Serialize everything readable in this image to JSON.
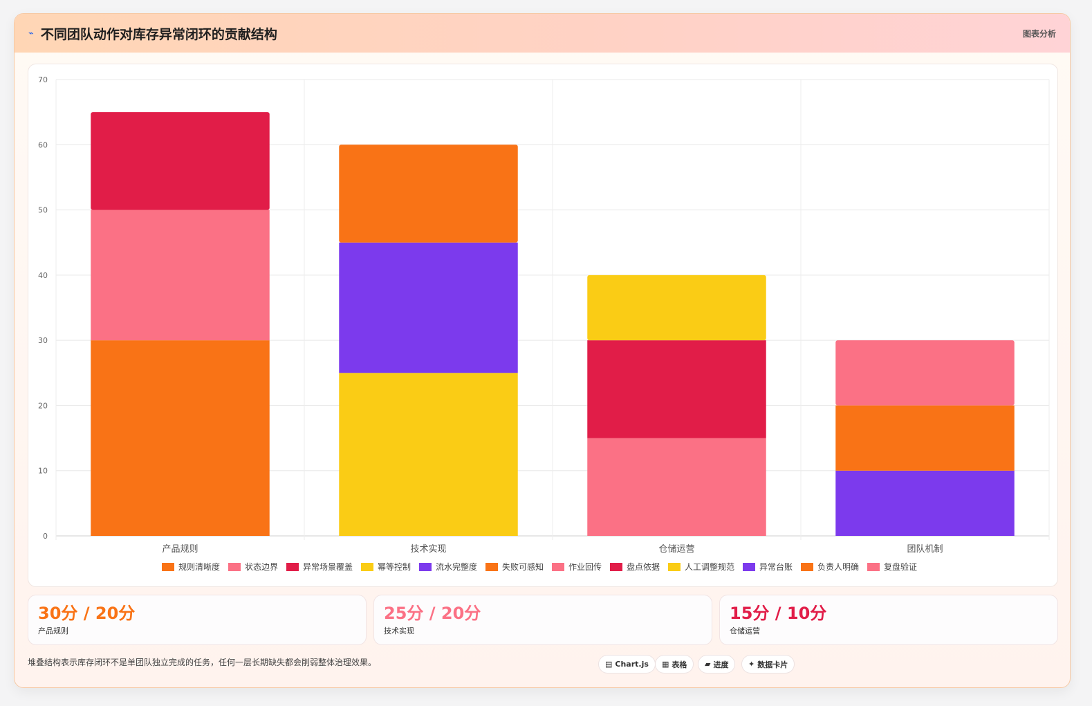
{
  "header": {
    "icon": "chart-trend-icon",
    "title": "不同团队动作对库存异常闭环的贡献结构",
    "link": "图表分析"
  },
  "chart_data": {
    "type": "bar",
    "stacked": true,
    "categories": [
      "产品规则",
      "技术实现",
      "仓储运营",
      "团队机制"
    ],
    "ylim": [
      0,
      70
    ],
    "yticks": [
      0,
      10,
      20,
      30,
      40,
      50,
      60,
      70
    ],
    "grid": true,
    "legend_position": "bottom",
    "series": [
      {
        "name": "规则清晰度",
        "color": "#f97316",
        "values": [
          30,
          0,
          0,
          0
        ]
      },
      {
        "name": "状态边界",
        "color": "#fb7185",
        "values": [
          20,
          0,
          0,
          0
        ]
      },
      {
        "name": "异常场景覆盖",
        "color": "#e11d48",
        "values": [
          15,
          0,
          0,
          0
        ]
      },
      {
        "name": "幂等控制",
        "color": "#facc15",
        "values": [
          0,
          25,
          0,
          0
        ]
      },
      {
        "name": "流水完整度",
        "color": "#7c3aed",
        "values": [
          0,
          20,
          0,
          0
        ]
      },
      {
        "name": "失败可感知",
        "color": "#f97316",
        "values": [
          0,
          15,
          0,
          0
        ]
      },
      {
        "name": "作业回传",
        "color": "#fb7185",
        "values": [
          0,
          0,
          15,
          0
        ]
      },
      {
        "name": "盘点依据",
        "color": "#e11d48",
        "values": [
          0,
          0,
          15,
          0
        ]
      },
      {
        "name": "人工调整规范",
        "color": "#facc15",
        "values": [
          0,
          0,
          10,
          0
        ]
      },
      {
        "name": "异常台账",
        "color": "#7c3aed",
        "values": [
          0,
          0,
          0,
          10
        ]
      },
      {
        "name": "负责人明确",
        "color": "#f97316",
        "values": [
          0,
          0,
          0,
          10
        ]
      },
      {
        "name": "复盘验证",
        "color": "#fb7185",
        "values": [
          0,
          0,
          0,
          10
        ]
      }
    ]
  },
  "stats": [
    {
      "value": "30分 / 20分",
      "label": "产品规则",
      "color": "#f97316"
    },
    {
      "value": "25分 / 20分",
      "label": "技术实现",
      "color": "#fb7185"
    },
    {
      "value": "15分 / 10分",
      "label": "仓储运营",
      "color": "#e11d48"
    }
  ],
  "footnote": "堆叠结构表示库存闭环不是单团队独立完成的任务，任何一层长期缺失都会削弱整体治理效果。",
  "pills": [
    {
      "icon": "chart-icon",
      "glyph": "▤",
      "label": "Chart.js"
    },
    {
      "icon": "table-icon",
      "glyph": "▦",
      "label": "表格"
    },
    {
      "icon": "progress-icon",
      "glyph": "▰",
      "label": "进度"
    },
    {
      "icon": "sparkle-icon",
      "glyph": "✦",
      "label": "数据卡片"
    }
  ]
}
